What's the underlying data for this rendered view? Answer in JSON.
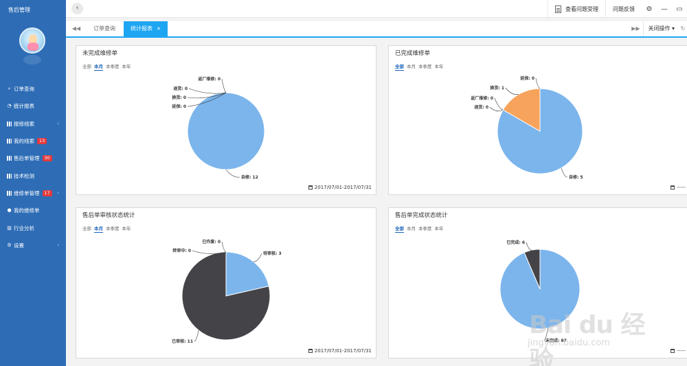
{
  "sidebar": {
    "title": "售后管理",
    "items": [
      {
        "label": "订单查询",
        "icon": "search-icon",
        "badge": "",
        "chevron": false
      },
      {
        "label": "统计报表",
        "icon": "pie-icon",
        "badge": "",
        "chevron": false
      },
      {
        "label": "报修线索",
        "icon": "grid-icon",
        "badge": "",
        "chevron": true
      },
      {
        "label": "我的线索",
        "icon": "grid-icon",
        "badge": "13",
        "chevron": false
      },
      {
        "label": "售后单管理",
        "icon": "grid-icon",
        "badge": "30",
        "chevron": false
      },
      {
        "label": "技术检测",
        "icon": "grid-icon",
        "badge": "",
        "chevron": false
      },
      {
        "label": "维修单管理",
        "icon": "grid-icon",
        "badge": "17",
        "chevron": true
      },
      {
        "label": "我的维修单",
        "icon": "user-icon",
        "badge": "",
        "chevron": false
      },
      {
        "label": "行业分析",
        "icon": "bar-chart-icon",
        "badge": "",
        "chevron": false
      },
      {
        "label": "设置",
        "icon": "gear-icon",
        "badge": "",
        "chevron": true
      }
    ]
  },
  "topbar": {
    "view_issue": "查看问题受理",
    "feedback": "问题反馈"
  },
  "tabs": {
    "items": [
      {
        "label": "订单查询",
        "active": false
      },
      {
        "label": "统计报表",
        "active": true
      }
    ],
    "close_ops": "关闭操作"
  },
  "filters": [
    "全部",
    "本月",
    "本季度",
    "本年"
  ],
  "panels": [
    {
      "title": "未完成维修单",
      "selected_filter": 1,
      "date": "2017/07/01-2017/07/31"
    },
    {
      "title": "已完成维修单",
      "selected_filter": 0,
      "date": "-----"
    },
    {
      "title": "售后单审核状态统计",
      "selected_filter": 1,
      "date": "2017/07/01-2017/07/31"
    },
    {
      "title": "售后单完成状态统计",
      "selected_filter": 0,
      "date": "-----"
    }
  ],
  "watermark": {
    "main": "Bai du 经验",
    "sub": "jingyan.baidu.com"
  },
  "chart_data": [
    {
      "type": "pie",
      "title": "未完成维修单",
      "slices": [
        {
          "label": "自修",
          "value": 12,
          "color": "#7cb5ec"
        },
        {
          "label": "延保",
          "value": 0,
          "color": "#f7a35c"
        },
        {
          "label": "换货",
          "value": 0,
          "color": "#90ed7d"
        },
        {
          "label": "退货",
          "value": 0,
          "color": "#434348"
        },
        {
          "label": "返厂维修",
          "value": 0,
          "color": "#8085e9"
        }
      ]
    },
    {
      "type": "pie",
      "title": "已完成维修单",
      "slices": [
        {
          "label": "自修",
          "value": 5,
          "color": "#7cb5ec"
        },
        {
          "label": "退货",
          "value": 0,
          "color": "#434348"
        },
        {
          "label": "返厂维修",
          "value": 0,
          "color": "#90ed7d"
        },
        {
          "label": "换货",
          "value": 1,
          "color": "#f7a35c"
        },
        {
          "label": "延保",
          "value": 0,
          "color": "#8085e9"
        }
      ]
    },
    {
      "type": "pie",
      "title": "售后单审核状态统计",
      "slices": [
        {
          "label": "待审核",
          "value": 3,
          "color": "#7cb5ec"
        },
        {
          "label": "已审核",
          "value": 11,
          "color": "#434348"
        },
        {
          "label": "转审中",
          "value": 0,
          "color": "#90ed7d"
        },
        {
          "label": "已作废",
          "value": 0,
          "color": "#f7a35c"
        }
      ]
    },
    {
      "type": "pie",
      "title": "售后单完成状态统计",
      "slices": [
        {
          "label": "未完成",
          "value": 87,
          "color": "#7cb5ec"
        },
        {
          "label": "已完成",
          "value": 6,
          "color": "#434348"
        }
      ]
    }
  ]
}
